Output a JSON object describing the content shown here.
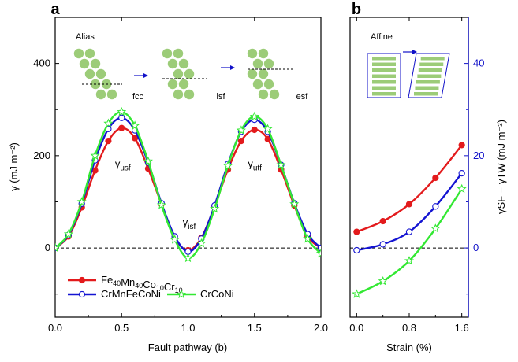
{
  "colors": {
    "red": "#e31a1c",
    "blue": "#1414d2",
    "green": "#33e833",
    "atom": "#9ccc78",
    "axis_blue": "#1010c8"
  },
  "chart_data": [
    {
      "id": "a",
      "type": "line",
      "panel_label": "a",
      "inset_label": "Alias",
      "xlabel": "Fault pathway (b)",
      "ylabel": "γ (mJ m⁻²)",
      "xlim": [
        0.0,
        2.0
      ],
      "ylim": [
        -150,
        500
      ],
      "xticks": [
        "0.0",
        "0.5",
        "1.0",
        "1.5",
        "2.0"
      ],
      "yticks": [
        "0",
        "200",
        "400"
      ],
      "annotations": {
        "usf": {
          "main": "γ",
          "sub": "usf"
        },
        "isf": {
          "main": "γ",
          "sub": "isf"
        },
        "utf": {
          "main": "γ",
          "sub": "utf"
        }
      },
      "stacking_labels": [
        "fcc",
        "isf",
        "esf"
      ],
      "series": [
        {
          "name": "Fe40Mn40Co10Cr10",
          "legend_parts": [
            {
              "t": "Fe",
              "s": "40"
            },
            {
              "t": "Mn",
              "s": "40"
            },
            {
              "t": "Co",
              "s": "10"
            },
            {
              "t": "Cr",
              "s": "10"
            }
          ],
          "color_key": "red",
          "marker": "filled-circle",
          "x": [
            0.0,
            0.1,
            0.2,
            0.3,
            0.4,
            0.5,
            0.6,
            0.7,
            0.8,
            0.9,
            1.0,
            1.1,
            1.2,
            1.3,
            1.4,
            1.5,
            1.6,
            1.7,
            1.8,
            1.9,
            2.0
          ],
          "y": [
            0,
            25,
            88,
            168,
            232,
            260,
            238,
            172,
            95,
            22,
            -5,
            22,
            90,
            170,
            232,
            256,
            236,
            170,
            92,
            25,
            0
          ]
        },
        {
          "name": "CrMnFeCoNi",
          "legend_parts": [
            {
              "t": "CrMnFeCoNi",
              "s": ""
            }
          ],
          "color_key": "blue",
          "marker": "open-circle",
          "x": [
            0.0,
            0.1,
            0.2,
            0.3,
            0.4,
            0.5,
            0.6,
            0.7,
            0.8,
            0.9,
            1.0,
            1.1,
            1.2,
            1.3,
            1.4,
            1.5,
            1.6,
            1.7,
            1.8,
            1.9,
            2.0
          ],
          "y": [
            0,
            28,
            96,
            190,
            258,
            282,
            255,
            185,
            97,
            25,
            -8,
            20,
            92,
            182,
            252,
            278,
            252,
            180,
            97,
            30,
            0
          ]
        },
        {
          "name": "CrCoNi",
          "legend_parts": [
            {
              "t": "CrCoNi",
              "s": ""
            }
          ],
          "color_key": "green",
          "marker": "open-star",
          "x": [
            0.0,
            0.1,
            0.2,
            0.3,
            0.4,
            0.5,
            0.6,
            0.7,
            0.8,
            0.9,
            1.0,
            1.1,
            1.2,
            1.3,
            1.4,
            1.5,
            1.6,
            1.7,
            1.8,
            1.9,
            2.0
          ],
          "y": [
            0,
            30,
            100,
            200,
            270,
            295,
            265,
            188,
            93,
            18,
            -22,
            10,
            85,
            178,
            255,
            285,
            258,
            180,
            95,
            20,
            -12
          ]
        }
      ]
    },
    {
      "id": "b",
      "type": "line",
      "panel_label": "b",
      "inset_label": "Affine",
      "xlabel": "Strain (%)",
      "ylabel": "γSF − γTW (mJ m⁻²)",
      "xlim": [
        -0.1,
        1.7
      ],
      "ylim": [
        -15,
        50
      ],
      "xticks": [
        "0.0",
        "0.8",
        "1.6"
      ],
      "yticks": [
        "0",
        "20",
        "40"
      ],
      "series": [
        {
          "name": "Fe40Mn40Co10Cr10",
          "color_key": "red",
          "marker": "filled-circle",
          "x": [
            0.0,
            0.4,
            0.8,
            1.2,
            1.6
          ],
          "y": [
            3.5,
            5.8,
            9.5,
            15.2,
            22.3
          ]
        },
        {
          "name": "CrMnFeCoNi",
          "color_key": "blue",
          "marker": "open-circle",
          "x": [
            0.0,
            0.4,
            0.8,
            1.2,
            1.6
          ],
          "y": [
            -0.5,
            0.8,
            3.5,
            9.0,
            16.2
          ]
        },
        {
          "name": "CrCoNi",
          "color_key": "green",
          "marker": "open-star",
          "x": [
            0.0,
            0.4,
            0.8,
            1.2,
            1.6
          ],
          "y": [
            -10.0,
            -7.2,
            -2.8,
            4.2,
            12.8
          ]
        }
      ]
    }
  ]
}
